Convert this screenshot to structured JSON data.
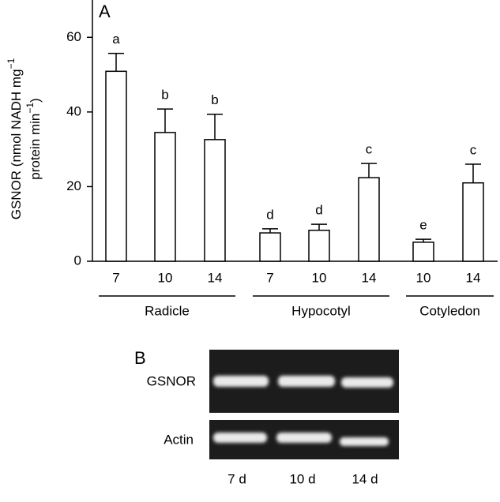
{
  "chart_data": {
    "type": "bar",
    "panel": "A",
    "ylabel": [
      "GSNOR (nmol NADH mg",
      "−1",
      "protein min",
      "−1",
      ")"
    ],
    "categories": [
      "7",
      "10",
      "14",
      "7",
      "10",
      "14",
      "10",
      "14"
    ],
    "groups": [
      {
        "name": "Radicle",
        "start": 0,
        "end": 2
      },
      {
        "name": "Hypocotyl",
        "start": 3,
        "end": 5
      },
      {
        "name": "Cotyledon",
        "start": 6,
        "end": 7
      }
    ],
    "values": [
      50.9,
      34.5,
      32.6,
      7.6,
      8.3,
      22.4,
      5.1,
      21.0
    ],
    "errors": [
      4.8,
      6.3,
      6.8,
      1.1,
      1.6,
      3.8,
      0.8,
      5.0
    ],
    "annotations": [
      "a",
      "b",
      "b",
      "d",
      "d",
      "c",
      "e",
      "c"
    ],
    "color": "#ffffff",
    "ylim": [
      0,
      70
    ],
    "yticks": [
      0,
      20,
      40,
      60
    ]
  },
  "gel": {
    "panel": "B",
    "rows": [
      "GSNOR",
      "Actin"
    ],
    "lanes": [
      "7 d",
      "10 d",
      "14 d"
    ]
  }
}
